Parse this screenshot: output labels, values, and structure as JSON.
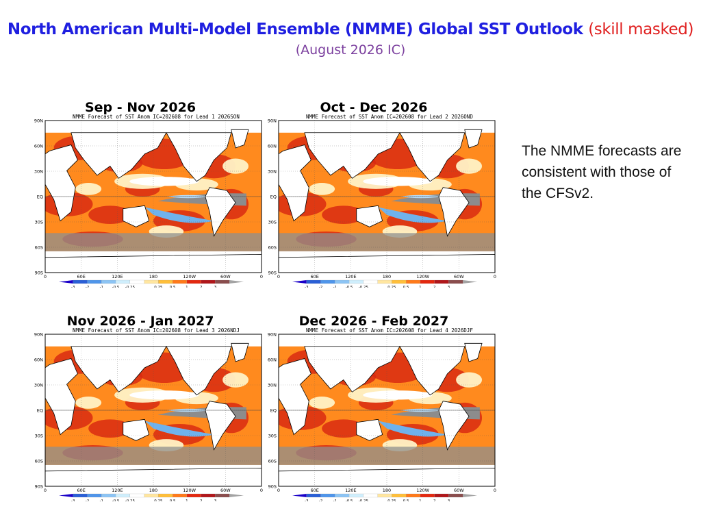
{
  "header": {
    "title_main": "North American Multi-Model Ensemble (NMME) Global SST Outlook",
    "title_mask": "(skill masked)",
    "subtitle": "(August 2026 IC)"
  },
  "note": "The NMME forecasts are consistent with those of the CFSv2.",
  "map_axes": {
    "lat_labels": [
      "90N",
      "60N",
      "30N",
      "EQ",
      "30S",
      "60S",
      "90S"
    ],
    "lon_labels": [
      "0",
      "60E",
      "120E",
      "180",
      "120W",
      "60W",
      "0"
    ]
  },
  "colorbar": {
    "ticks": [
      "-3",
      "-2",
      "-1",
      "-0.5",
      "-0.25",
      "0.25",
      "0.5",
      "1",
      "2",
      "3"
    ],
    "colors": [
      "#1a00c8",
      "#2a5fd6",
      "#4f95ea",
      "#8cc4f4",
      "#cfeefc",
      "#ffffff",
      "#ffe6a0",
      "#ffbf3a",
      "#ff7a1a",
      "#e3280f",
      "#b0161a",
      "#8a4d4d",
      "#a3a3a3"
    ]
  },
  "panels": [
    {
      "label": "Sep - Nov 2026",
      "map_title": "NMME Forecast of SST Anom IC=202608 for Lead 1 2026SON"
    },
    {
      "label": "Oct - Dec 2026",
      "map_title": "NMME Forecast of SST Anom IC=202608 for Lead 2 2026OND"
    },
    {
      "label": "Nov 2026 - Jan 2027",
      "map_title": "NMME Forecast of SST Anom IC=202608 for Lead 3 2026NDJ"
    },
    {
      "label": "Dec 2026 - Feb 2027",
      "map_title": "NMME Forecast of SST Anom IC=202608 for Lead 4 2026DJF"
    }
  ]
}
